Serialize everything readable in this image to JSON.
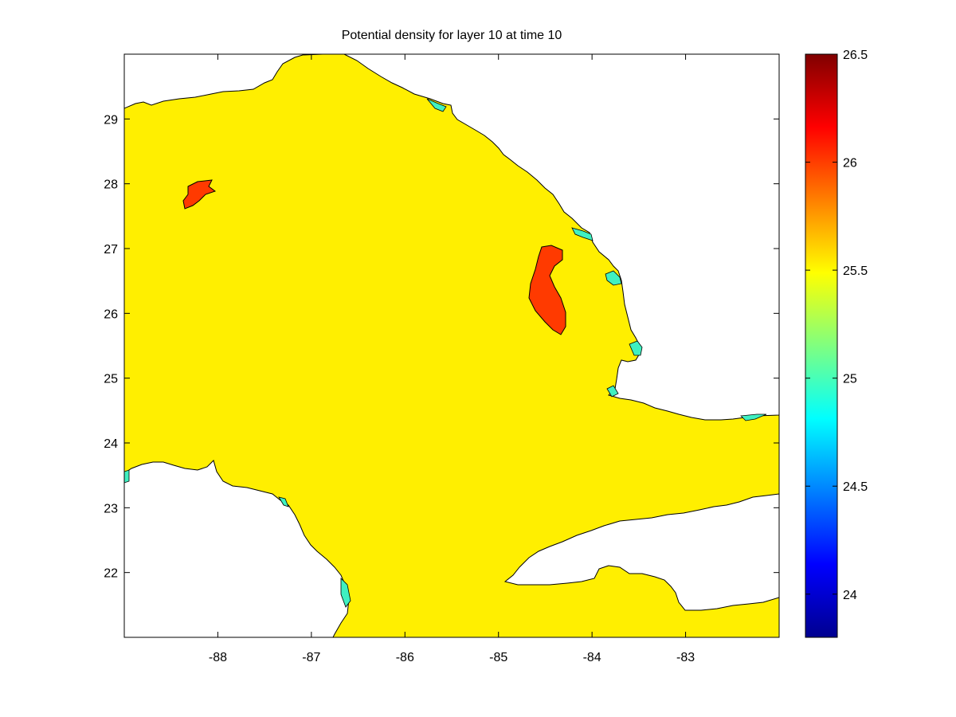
{
  "title": "Potential density for layer 10 at time 10",
  "colors": {
    "ocean_fill": "#ffef00",
    "high_density_patch": "#ff3a00",
    "low_density_edge": "#40f0c0",
    "land": "#ffffff",
    "coastline": "#000000"
  },
  "map": {
    "lon_range": [
      -89,
      -82
    ],
    "lat_range": [
      21,
      30
    ],
    "x_ticks": [
      -88,
      -87,
      -86,
      -85,
      -84,
      -83
    ],
    "x_tick_labels": [
      "-88",
      "-87",
      "-86",
      "-85",
      "-84",
      "-83"
    ],
    "y_ticks": [
      22,
      23,
      24,
      25,
      26,
      27,
      28,
      29
    ],
    "y_tick_labels": [
      "22",
      "23",
      "24",
      "25",
      "26",
      "27",
      "28",
      "29"
    ]
  },
  "colorbar": {
    "range": [
      23.8,
      26.5
    ],
    "ticks": [
      24,
      24.5,
      25,
      25.5,
      26,
      26.5
    ],
    "tick_labels": [
      "24",
      "24.5",
      "25",
      "25.5",
      "26",
      "26.5"
    ],
    "colormap": "jet"
  }
}
